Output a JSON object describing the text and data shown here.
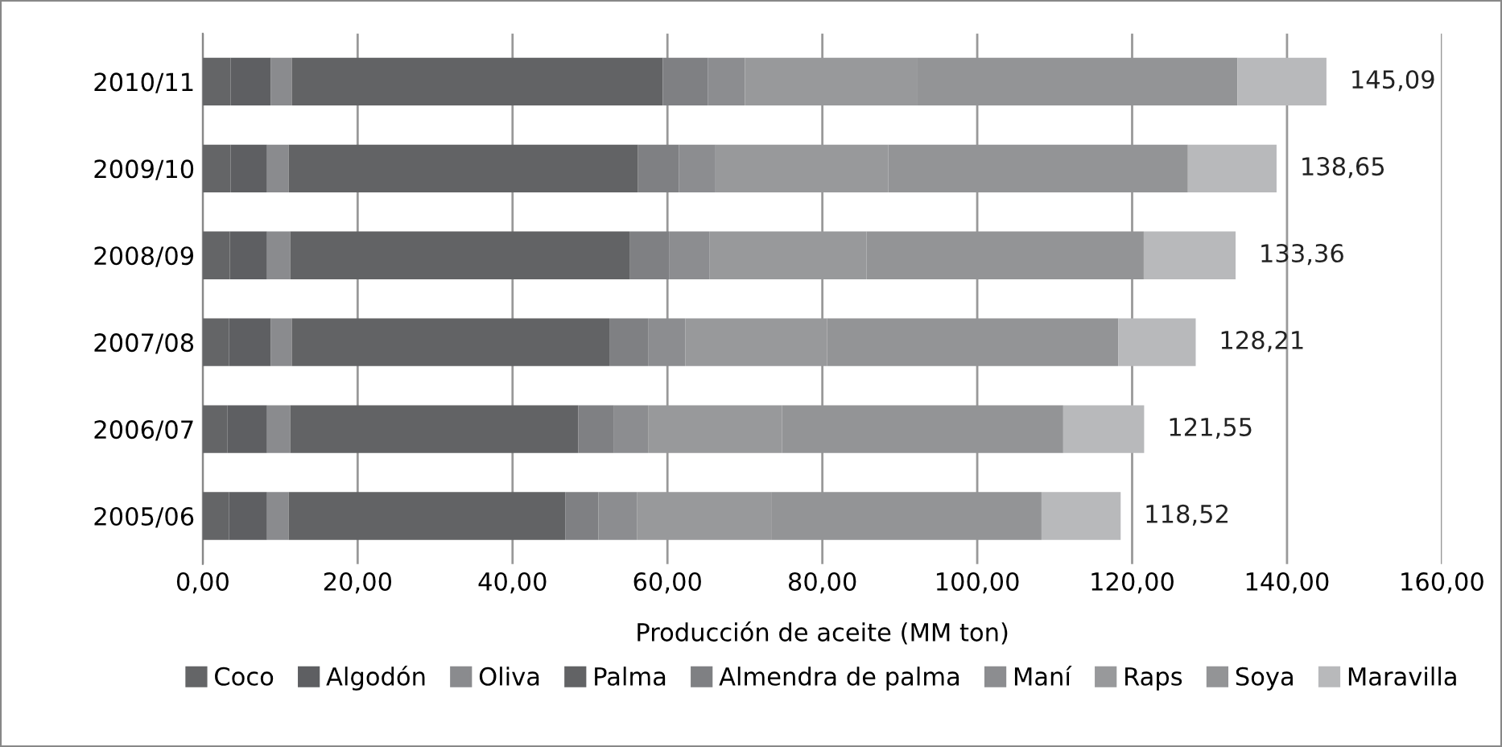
{
  "chart_data": {
    "type": "bar",
    "orientation": "horizontal",
    "stacked": true,
    "xlabel": "Producción de aceite (MM ton)",
    "categories": [
      "2010/11",
      "2009/10",
      "2008/09",
      "2007/08",
      "2006/07",
      "2005/06"
    ],
    "series": [
      {
        "name": "Coco",
        "color": "#646567",
        "values": [
          3.6,
          3.6,
          3.5,
          3.4,
          3.2,
          3.4
        ]
      },
      {
        "name": "Algodón",
        "color": "#5e5f62",
        "values": [
          5.2,
          4.7,
          4.8,
          5.4,
          5.1,
          4.9
        ]
      },
      {
        "name": "Oliva",
        "color": "#8a8b8e",
        "values": [
          2.7,
          2.8,
          3.0,
          2.7,
          3.0,
          2.8
        ]
      },
      {
        "name": "Palma",
        "color": "#626365",
        "values": [
          47.9,
          45.1,
          43.8,
          41.0,
          37.2,
          35.7
        ]
      },
      {
        "name": "Almendra de palma",
        "color": "#7f8083",
        "values": [
          5.8,
          5.3,
          5.1,
          5.0,
          4.6,
          4.3
        ]
      },
      {
        "name": "Maní",
        "color": "#8c8d90",
        "values": [
          4.8,
          4.7,
          5.2,
          4.8,
          4.4,
          5.0
        ]
      },
      {
        "name": "Raps",
        "color": "#98999b",
        "values": [
          22.3,
          22.3,
          20.3,
          18.3,
          17.3,
          17.3
        ]
      },
      {
        "name": "Soya",
        "color": "#939496",
        "values": [
          41.3,
          38.7,
          35.8,
          37.6,
          36.3,
          34.9
        ]
      },
      {
        "name": "Maravilla",
        "color": "#b8b9bb",
        "values": [
          11.49,
          11.45,
          11.86,
          10.01,
          10.45,
          10.22
        ]
      }
    ],
    "totals": [
      "145,09",
      "138,65",
      "133,36",
      "128,21",
      "121,55",
      "118,52"
    ],
    "xlim": [
      0,
      160
    ],
    "xticks": [
      {
        "value": 0,
        "label": "0,00"
      },
      {
        "value": 20,
        "label": "20,00"
      },
      {
        "value": 40,
        "label": "40,00"
      },
      {
        "value": 60,
        "label": "60,00"
      },
      {
        "value": 80,
        "label": "80,00"
      },
      {
        "value": 100,
        "label": "100,00"
      },
      {
        "value": 120,
        "label": "120,00"
      },
      {
        "value": 140,
        "label": "140,00"
      },
      {
        "value": 160,
        "label": "160,00"
      }
    ],
    "grid": "x",
    "legend": "bottom"
  }
}
